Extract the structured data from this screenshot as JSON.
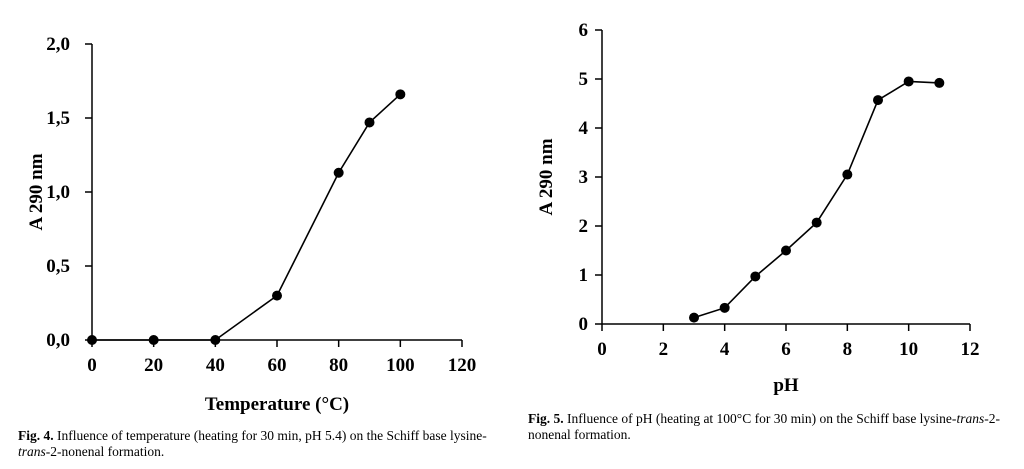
{
  "figures": [
    {
      "fig_label": "Fig. 4.",
      "caption_pre": " Influence of temperature (heating for 30 min, pH 5.4) on the Schiff base lysine-",
      "caption_italic": "trans",
      "caption_post": "-2-nonenal formation."
    },
    {
      "fig_label": "Fig. 5.",
      "caption_pre": " Influence of pH (heating at 100°C for 30 min) on the Schiff base lysine-",
      "caption_italic": "trans",
      "caption_post": "-2-nonenal formation."
    }
  ],
  "chart_data": [
    {
      "type": "line",
      "title": "",
      "xlabel": "Temperature  (°C)",
      "ylabel": "A  290  nm",
      "xlim": [
        0,
        120
      ],
      "ylim": [
        0,
        2.0
      ],
      "xticks": [
        0,
        20,
        40,
        60,
        80,
        100,
        120
      ],
      "xtick_labels": [
        "0",
        "20",
        "40",
        "60",
        "80",
        "100",
        "120"
      ],
      "yticks": [
        0,
        0.5,
        1.0,
        1.5,
        2.0
      ],
      "ytick_labels": [
        "0,0",
        "0,5",
        "1,0",
        "1,5",
        "2,0"
      ],
      "x": [
        0,
        20,
        40,
        60,
        80,
        90,
        100
      ],
      "y": [
        0,
        0,
        0,
        0.3,
        1.13,
        1.47,
        1.66
      ],
      "marker": "filled-circle",
      "grid": false
    },
    {
      "type": "line",
      "title": "",
      "xlabel": "pH",
      "ylabel": "A  290  nm",
      "xlim": [
        0,
        12
      ],
      "ylim": [
        0,
        6
      ],
      "xticks": [
        0,
        2,
        4,
        6,
        8,
        10,
        12
      ],
      "xtick_labels": [
        "0",
        "2",
        "4",
        "6",
        "8",
        "10",
        "12"
      ],
      "yticks": [
        0,
        1,
        2,
        3,
        4,
        5,
        6
      ],
      "ytick_labels": [
        "0",
        "1",
        "2",
        "3",
        "4",
        "5",
        "6"
      ],
      "x": [
        3,
        4,
        5,
        6,
        7,
        8,
        9,
        10,
        11
      ],
      "y": [
        0.13,
        0.33,
        0.97,
        1.5,
        2.07,
        3.05,
        4.57,
        4.95,
        4.92
      ],
      "marker": "filled-circle",
      "grid": false
    }
  ]
}
